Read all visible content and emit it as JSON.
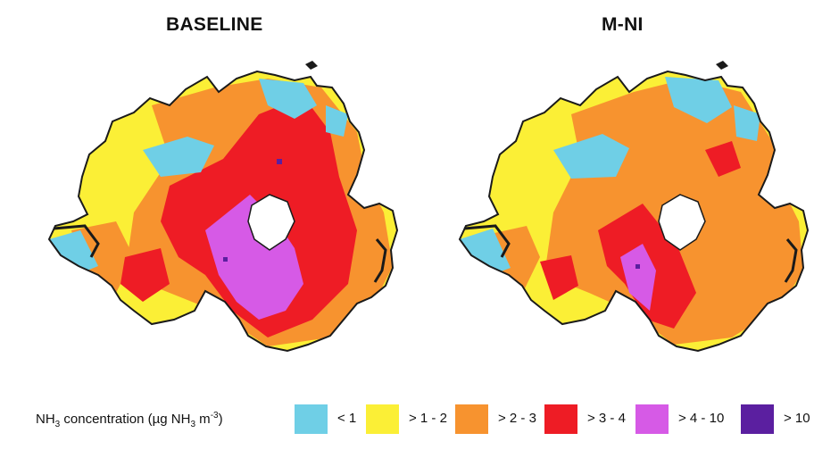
{
  "panels": [
    {
      "title": "BASELINE"
    },
    {
      "title": "M-NI"
    }
  ],
  "legend": {
    "title_prefix": "NH",
    "title_sub": "3",
    "title_middle": " concentration (µg NH",
    "title_sub2": "3",
    "title_unit": " m",
    "title_sup": "-3",
    "title_suffix": ")",
    "classes": [
      {
        "label": "< 1",
        "color": "#6fcfe6"
      },
      {
        "label": "> 1 - 2",
        "color": "#fbef36"
      },
      {
        "label": "> 2 - 3",
        "color": "#f7932f"
      },
      {
        "label": "> 3 - 4",
        "color": "#ee1c25"
      },
      {
        "label": "> 4 - 10",
        "color": "#d65ae6"
      },
      {
        "label": "> 10",
        "color": "#5b1fa0"
      }
    ]
  },
  "colors": {
    "outline": "#1a1a1a",
    "lake": "#ffffff"
  }
}
